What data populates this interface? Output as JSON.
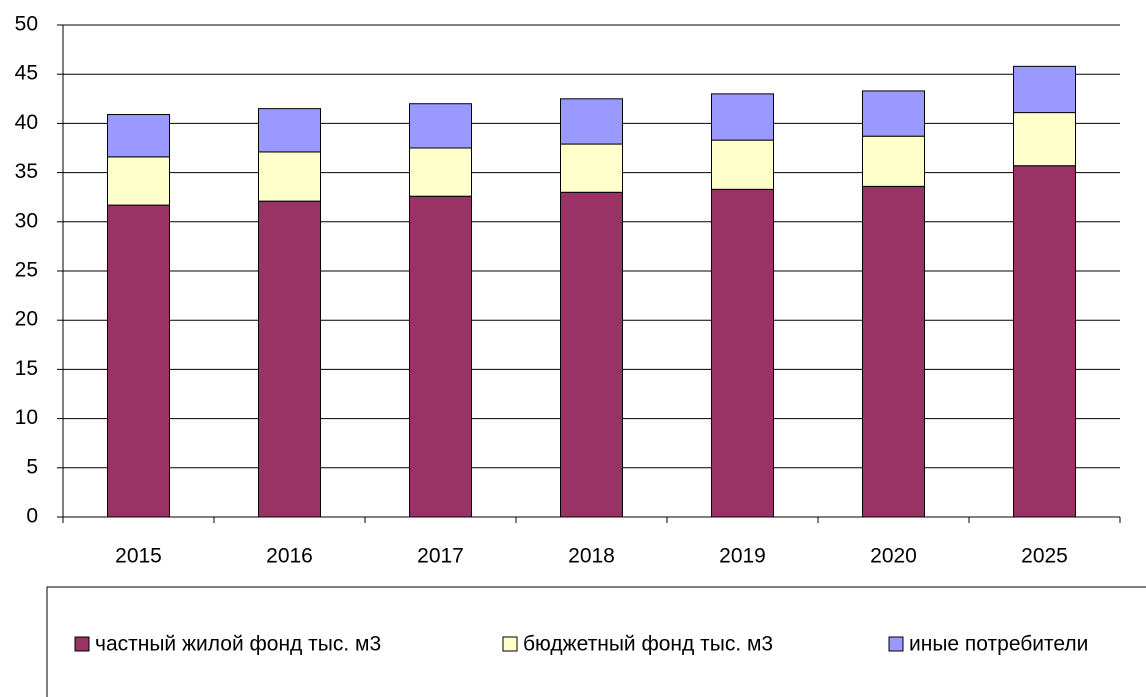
{
  "chart_data": {
    "type": "stacked_bar",
    "categories": [
      "2015",
      "2016",
      "2017",
      "2018",
      "2019",
      "2020",
      "2025"
    ],
    "series": [
      {
        "name": "частный жилой фонд тыс. м3",
        "color": "#993366",
        "values": [
          31.7,
          32.1,
          32.6,
          33.0,
          33.3,
          33.6,
          35.7
        ]
      },
      {
        "name": "бюджетный фонд тыс. м3",
        "color": "#ffffcc",
        "values": [
          4.9,
          5.0,
          4.9,
          4.9,
          5.0,
          5.1,
          5.4
        ]
      },
      {
        "name": "иные потребители",
        "color": "#9999ff",
        "values": [
          4.3,
          4.4,
          4.5,
          4.6,
          4.7,
          4.6,
          4.7
        ]
      }
    ],
    "ylim": [
      0,
      50
    ],
    "yticks": [
      0,
      5,
      10,
      15,
      20,
      25,
      30,
      35,
      40,
      45,
      50
    ],
    "grid": true,
    "legend": "bottom"
  }
}
